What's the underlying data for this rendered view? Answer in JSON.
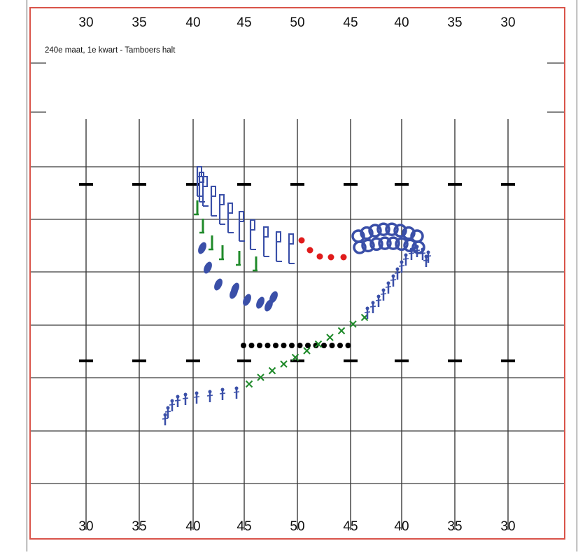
{
  "caption": "240e maat, 1e kwart - Tamboers halt",
  "yard_labels_top": [
    "30",
    "35",
    "40",
    "45",
    "50",
    "45",
    "40",
    "35",
    "30"
  ],
  "yard_labels_bottom": [
    "30",
    "35",
    "40",
    "45",
    "50",
    "45",
    "40",
    "35",
    "30"
  ],
  "colors": {
    "border": "#d9544a",
    "grid": "#3a3a3a",
    "blue": "#3a4fa8",
    "green": "#1f8a2a",
    "red": "#e01b1b",
    "black": "#000000"
  },
  "formations": [
    {
      "name": "blue-flag-marchers",
      "symbol": "flag",
      "color": "blue",
      "count": 11
    },
    {
      "name": "green-marchers",
      "symbol": "green-stick",
      "color": "green",
      "count": 6
    },
    {
      "name": "blue-drop-marchers",
      "symbol": "drop",
      "color": "blue",
      "count": 9
    },
    {
      "name": "red-dot-line",
      "symbol": "dot",
      "color": "red",
      "count": 5
    },
    {
      "name": "blue-circle-cluster",
      "symbol": "circle",
      "color": "blue",
      "count": 16
    },
    {
      "name": "black-dot-line",
      "symbol": "dot",
      "color": "black",
      "count": 14
    },
    {
      "name": "green-x-line",
      "symbol": "x",
      "color": "green",
      "count": 11
    },
    {
      "name": "blue-figure-line",
      "symbol": "figure",
      "color": "blue",
      "count": 23
    }
  ]
}
